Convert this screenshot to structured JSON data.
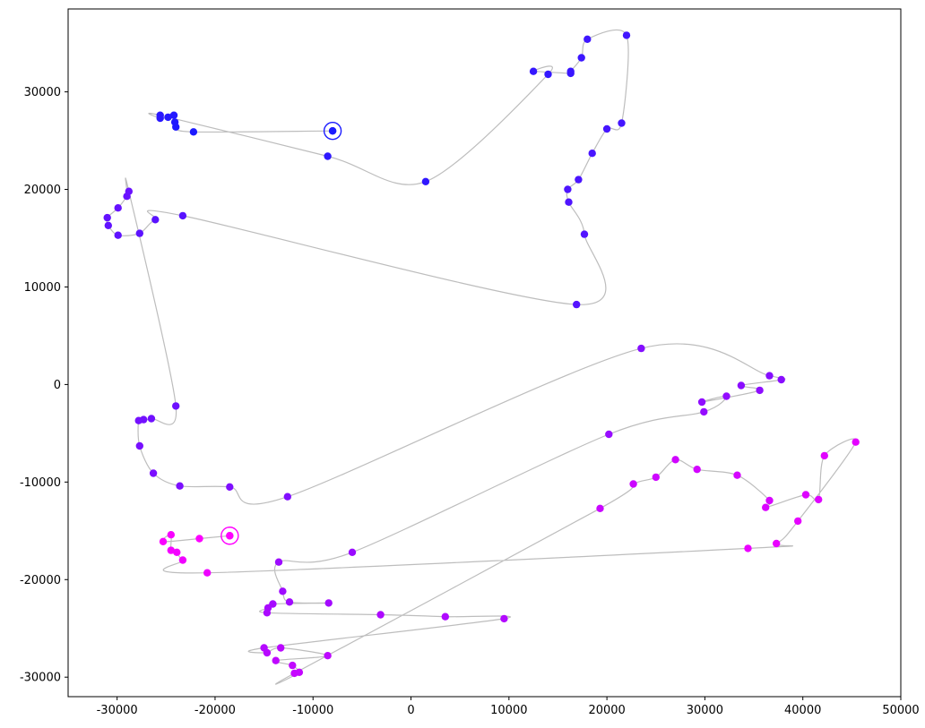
{
  "chart_data": {
    "type": "scatter",
    "title": "",
    "xlabel": "",
    "ylabel": "",
    "xlim": [
      -35000,
      50000
    ],
    "ylim": [
      -32000,
      38500
    ],
    "xticks": [
      -30000,
      -20000,
      -10000,
      0,
      10000,
      20000,
      30000,
      40000,
      50000
    ],
    "yticks": [
      -30000,
      -20000,
      -10000,
      0,
      10000,
      20000,
      30000
    ],
    "grid": false,
    "line_color": "#bdbdbd",
    "color_start": "#1a1aff",
    "color_end": "#ff00ff",
    "start_marker": {
      "x": -8000,
      "y": 26000,
      "color": "#1a1aff"
    },
    "end_marker": {
      "x": -18500,
      "y": -15500,
      "color": "#ff00ff"
    },
    "points": [
      [
        -8000,
        26000
      ],
      [
        -22200,
        25900
      ],
      [
        -24000,
        26400
      ],
      [
        -24100,
        26900
      ],
      [
        -24200,
        27600
      ],
      [
        -24800,
        27400
      ],
      [
        -25600,
        27300
      ],
      [
        -25600,
        27600
      ],
      [
        -8500,
        23400
      ],
      [
        1500,
        20800
      ],
      [
        14000,
        31800
      ],
      [
        12500,
        32100
      ],
      [
        16300,
        31900
      ],
      [
        16300,
        32100
      ],
      [
        17400,
        33500
      ],
      [
        18000,
        35400
      ],
      [
        22000,
        35800
      ],
      [
        21500,
        26800
      ],
      [
        20000,
        26200
      ],
      [
        18500,
        23700
      ],
      [
        17100,
        21000
      ],
      [
        16000,
        20000
      ],
      [
        16100,
        18700
      ],
      [
        17700,
        15400
      ],
      [
        16900,
        8200
      ],
      [
        -23300,
        17300
      ],
      [
        -26100,
        16900
      ],
      [
        -27700,
        15500
      ],
      [
        -29900,
        15300
      ],
      [
        -30900,
        16300
      ],
      [
        -31000,
        17100
      ],
      [
        -29900,
        18100
      ],
      [
        -29000,
        19300
      ],
      [
        -28800,
        19800
      ],
      [
        -24000,
        -2200
      ],
      [
        -26500,
        -3500
      ],
      [
        -27300,
        -3600
      ],
      [
        -27800,
        -3700
      ],
      [
        -27700,
        -6300
      ],
      [
        -26300,
        -9100
      ],
      [
        -23600,
        -10400
      ],
      [
        -18500,
        -10500
      ],
      [
        -12600,
        -11500
      ],
      [
        23500,
        3700
      ],
      [
        36600,
        900
      ],
      [
        37800,
        500
      ],
      [
        33700,
        -100
      ],
      [
        35600,
        -600
      ],
      [
        29700,
        -1800
      ],
      [
        32200,
        -1200
      ],
      [
        29900,
        -2800
      ],
      [
        20200,
        -5100
      ],
      [
        -6000,
        -17200
      ],
      [
        -13500,
        -18200
      ],
      [
        -13100,
        -21200
      ],
      [
        -12400,
        -22300
      ],
      [
        -8400,
        -22400
      ],
      [
        -14100,
        -22500
      ],
      [
        -14600,
        -22900
      ],
      [
        -14700,
        -23400
      ],
      [
        -3100,
        -23600
      ],
      [
        3500,
        -23800
      ],
      [
        9500,
        -24000
      ],
      [
        -15000,
        -27000
      ],
      [
        -14700,
        -27500
      ],
      [
        -13300,
        -27000
      ],
      [
        -8500,
        -27800
      ],
      [
        -13800,
        -28300
      ],
      [
        -12100,
        -28800
      ],
      [
        -11400,
        -29500
      ],
      [
        -11900,
        -29600
      ],
      [
        19300,
        -12700
      ],
      [
        22700,
        -10200
      ],
      [
        25000,
        -9500
      ],
      [
        27000,
        -7700
      ],
      [
        29200,
        -8700
      ],
      [
        33300,
        -9300
      ],
      [
        36600,
        -11900
      ],
      [
        36200,
        -12600
      ],
      [
        40300,
        -11300
      ],
      [
        41600,
        -11800
      ],
      [
        42200,
        -7300
      ],
      [
        45400,
        -5900
      ],
      [
        39500,
        -14000
      ],
      [
        37300,
        -16300
      ],
      [
        34400,
        -16800
      ],
      [
        -20800,
        -19300
      ],
      [
        -23300,
        -18000
      ],
      [
        -23900,
        -17200
      ],
      [
        -24500,
        -17000
      ],
      [
        -24500,
        -15400
      ],
      [
        -25300,
        -16100
      ],
      [
        -21600,
        -15800
      ],
      [
        -18500,
        -15500
      ]
    ]
  }
}
